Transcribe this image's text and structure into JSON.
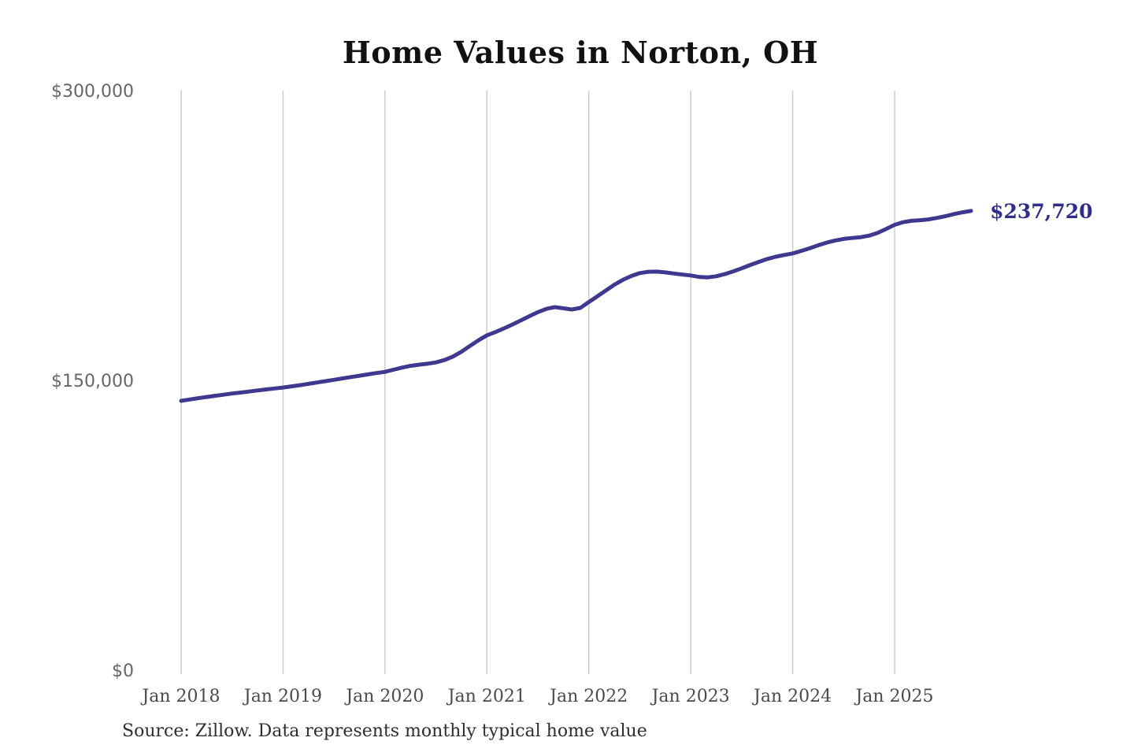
{
  "chart": {
    "title": "Home Values in Norton, OH",
    "end_label": "$237,720",
    "source_note": "Source: Zillow. Data represents monthly typical home value"
  },
  "colors": {
    "background": "#ffffff",
    "line": "#3e388f",
    "end_label": "#312e8a",
    "grid": "#c9c9c9",
    "x_tick": "#4a4a4a",
    "y_tick": "#666666",
    "title": "#111111",
    "source": "#2e2e2e"
  },
  "chart_data": {
    "type": "line",
    "title": "Home Values in Norton, OH",
    "xlabel": "",
    "ylabel": "",
    "ylim": [
      0,
      300000
    ],
    "grid": "vertical-only",
    "legend": "none",
    "y_ticks": [
      {
        "value": 300000,
        "label": "$300,000"
      },
      {
        "value": 150000,
        "label": "$150,000"
      },
      {
        "value": 0,
        "label": "$0"
      }
    ],
    "x_ticks": [
      {
        "month_index": 0,
        "label": "Jan 2018"
      },
      {
        "month_index": 12,
        "label": "Jan 2019"
      },
      {
        "month_index": 24,
        "label": "Jan 2020"
      },
      {
        "month_index": 36,
        "label": "Jan 2021"
      },
      {
        "month_index": 48,
        "label": "Jan 2022"
      },
      {
        "month_index": 60,
        "label": "Jan 2023"
      },
      {
        "month_index": 72,
        "label": "Jan 2024"
      },
      {
        "month_index": 84,
        "label": "Jan 2025"
      }
    ],
    "series": [
      {
        "name": "Monthly typical home value",
        "start_month": "2018-01",
        "end_month": "2025-10",
        "values": [
          139400,
          140100,
          140800,
          141400,
          142000,
          142600,
          143200,
          143700,
          144200,
          144800,
          145300,
          145800,
          146300,
          146900,
          147500,
          148200,
          148900,
          149600,
          150300,
          151000,
          151700,
          152400,
          153100,
          153800,
          154400,
          155500,
          156600,
          157500,
          158100,
          158600,
          159300,
          160500,
          162300,
          164800,
          167800,
          170700,
          173300,
          175000,
          176900,
          178900,
          181000,
          183200,
          185300,
          187000,
          187900,
          187300,
          186700,
          187500,
          190500,
          193500,
          196500,
          199500,
          202000,
          204000,
          205500,
          206200,
          206300,
          205900,
          205300,
          204800,
          204300,
          203500,
          203300,
          203900,
          205000,
          206400,
          208000,
          209700,
          211300,
          212800,
          214000,
          214900,
          215700,
          217000,
          218400,
          219900,
          221300,
          222400,
          223200,
          223700,
          224100,
          224900,
          226300,
          228400,
          230500,
          231900,
          232600,
          232900,
          233300,
          234100,
          235000,
          236100,
          237000,
          237720
        ]
      }
    ],
    "end_value": 237720,
    "source": "Source: Zillow. Data represents monthly typical home value"
  }
}
